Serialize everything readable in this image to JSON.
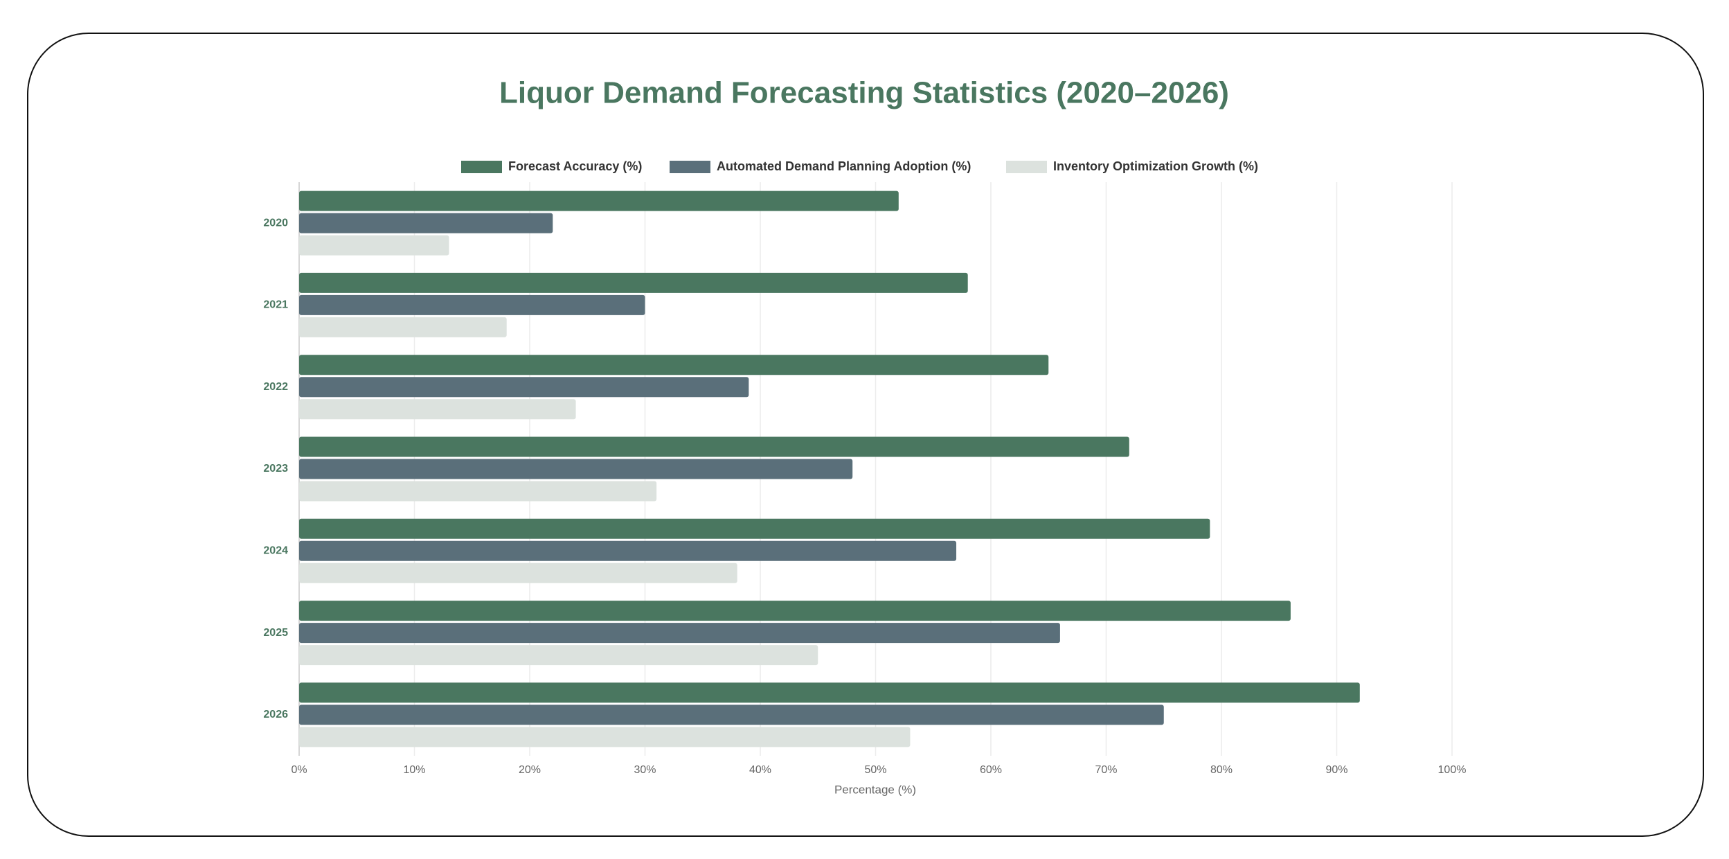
{
  "chart_data": {
    "type": "barh",
    "title": "Liquor Demand Forecasting Statistics (2020–2026)",
    "x_label": "Percentage (%)",
    "categories": [
      "2020",
      "2021",
      "2022",
      "2023",
      "2024",
      "2025",
      "2026"
    ],
    "series": [
      {
        "name": "Forecast Accuracy (%)",
        "color": "#4a7760",
        "values": [
          52,
          58,
          65,
          72,
          79,
          86,
          92
        ]
      },
      {
        "name": "Automated Demand Planning Adoption (%)",
        "color": "#5a6f7a",
        "values": [
          22,
          30,
          39,
          48,
          57,
          66,
          75
        ]
      },
      {
        "name": "Inventory Optimization Growth (%)",
        "color": "#dce2de",
        "values": [
          13,
          18,
          24,
          31,
          38,
          45,
          53
        ]
      }
    ],
    "xlim": [
      0,
      100
    ],
    "xticks": [
      {
        "value": 0,
        "label": "0%"
      },
      {
        "value": 10,
        "label": "10%"
      },
      {
        "value": 20,
        "label": "20%"
      },
      {
        "value": 30,
        "label": "30%"
      },
      {
        "value": 40,
        "label": "40%"
      },
      {
        "value": 50,
        "label": "50%"
      },
      {
        "value": 60,
        "label": "60%"
      },
      {
        "value": 70,
        "label": "70%"
      },
      {
        "value": 80,
        "label": "80%"
      },
      {
        "value": 90,
        "label": "90%"
      },
      {
        "value": 100,
        "label": "100%"
      }
    ],
    "grid": true,
    "legend": "top"
  }
}
